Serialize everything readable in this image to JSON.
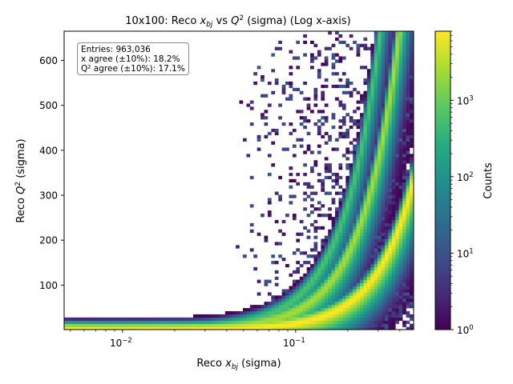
{
  "chart_data": {
    "type": "heatmap",
    "title": "10x100: Reco x_bj vs Q² (sigma) (Log x-axis)",
    "title_parts": {
      "pre": "10x100: Reco ",
      "x": "x",
      "xsub": "bj",
      "mid": " vs ",
      "q": "Q",
      "qsup": "2",
      "post": " (sigma) (Log x-axis)"
    },
    "xlabel": "Reco x_bj (sigma)",
    "xlabel_parts": {
      "pre": "Reco ",
      "x": "x",
      "xsub": "bj",
      "post": " (sigma)"
    },
    "ylabel": "Reco Q² (sigma)",
    "ylabel_parts": {
      "pre": "Reco ",
      "q": "Q",
      "qsup": "2",
      "post": " (sigma)"
    },
    "x_scale": "log",
    "xlim": [
      0.0046,
      0.48
    ],
    "ylim": [
      1,
      665
    ],
    "x_ticks": [
      {
        "value": 0.01,
        "base": "10",
        "exp": "−2"
      },
      {
        "value": 0.1,
        "base": "10",
        "exp": "−1"
      }
    ],
    "y_ticks": [
      {
        "value": 100,
        "label": "100"
      },
      {
        "value": 200,
        "label": "200"
      },
      {
        "value": 300,
        "label": "300"
      },
      {
        "value": 400,
        "label": "400"
      },
      {
        "value": 500,
        "label": "500"
      },
      {
        "value": 600,
        "label": "600"
      }
    ],
    "colorbar": {
      "label": "Counts",
      "scale": "log",
      "colormap": "viridis",
      "range": [
        1,
        8000
      ],
      "ticks": [
        {
          "value": 1,
          "base": "10",
          "exp": "0"
        },
        {
          "value": 10,
          "base": "10",
          "exp": "1"
        },
        {
          "value": 100,
          "base": "10",
          "exp": "2"
        },
        {
          "value": 1000,
          "base": "10",
          "exp": "3"
        }
      ]
    },
    "bands": [
      {
        "q_over_x_sq": 1450,
        "peak_count": 8000
      },
      {
        "q_over_x_sq": 4200,
        "peak_count": 2500
      },
      {
        "q_over_x_sq": 7000,
        "peak_count": 600
      }
    ],
    "stats_box": {
      "entries": "Entries: 963,036",
      "x_agree": "x agree (±10%): 18.2%",
      "q2_agree": "Q² agree (±10%): 17.1%"
    },
    "grid": false
  }
}
